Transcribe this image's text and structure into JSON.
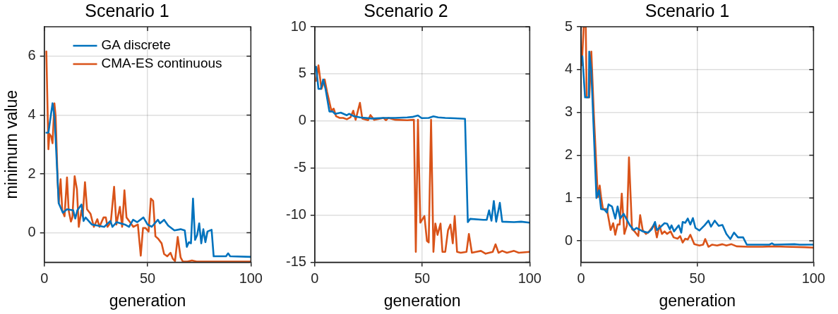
{
  "chart_data": [
    {
      "type": "line",
      "title": "Scenario 1",
      "xlabel": "generation",
      "ylabel": "minimum value",
      "xlim": [
        0,
        100
      ],
      "xticks": [
        0,
        50,
        100
      ],
      "ylim": [
        -1,
        7
      ],
      "yticks": [
        0,
        2,
        4,
        6
      ],
      "grid": true,
      "legend": "top",
      "marker": "none",
      "line_style": "solid",
      "series": [
        {
          "name": "GA discrete",
          "color": "#0072bd",
          "x": [
            1,
            2,
            4,
            5,
            7,
            9,
            11,
            14,
            15,
            16,
            18,
            19,
            20,
            23,
            26,
            29,
            32,
            33,
            35,
            39,
            41,
            43,
            45,
            48,
            50,
            52,
            55,
            56,
            58,
            60,
            63,
            66,
            68,
            69,
            70,
            71,
            72,
            73,
            74,
            75,
            76,
            77,
            78,
            79,
            81,
            82,
            88,
            89,
            90,
            100
          ],
          "values": [
            3.4,
            3.4,
            4.4,
            3.9,
            1.0,
            0.68,
            0.8,
            0.76,
            0.48,
            0.76,
            0.96,
            0.4,
            0.52,
            0.28,
            0.24,
            0.2,
            0.4,
            0.2,
            0.36,
            0.28,
            0.2,
            0.44,
            0.36,
            0.52,
            0.28,
            0.2,
            0.44,
            0.32,
            0.44,
            0.24,
            0.08,
            0.12,
            0.08,
            -0.48,
            -0.32,
            -0.36,
            1.16,
            -0.24,
            -0.08,
            0.32,
            -0.36,
            0.12,
            -0.32,
            0.04,
            0.1,
            -0.8,
            -0.8,
            -0.7,
            -0.8,
            -0.82
          ]
        },
        {
          "name": "CMA-ES continuous",
          "color": "#d95319",
          "x": [
            1,
            2,
            2.5,
            3.3,
            4,
            4.9,
            5.5,
            6.5,
            7,
            7.9,
            8.7,
            9.8,
            11,
            11.8,
            12.9,
            13.6,
            14.7,
            15.8,
            16.7,
            18,
            18.6,
            19.7,
            20.7,
            22.4,
            24,
            25.7,
            26.7,
            28.7,
            29.8,
            30.6,
            32.2,
            33.8,
            34.9,
            36.6,
            37.7,
            38.8,
            39.8,
            41.5,
            43.1,
            45.3,
            46.7,
            47.8,
            49,
            50.5,
            51.6,
            52.7,
            53.8,
            55.1,
            56.8,
            58,
            59.5,
            61.1,
            62.2,
            63.3,
            64.6,
            66,
            67.1,
            69.3,
            71.5,
            73.7,
            78,
            100
          ],
          "values": [
            6.16,
            2.84,
            3.36,
            3.28,
            3.04,
            4.4,
            3.96,
            1.72,
            1.0,
            1.82,
            0.76,
            0.56,
            1.88,
            0.76,
            0.38,
            0.52,
            1.92,
            1.48,
            0.2,
            0.76,
            0.56,
            1.72,
            0.8,
            0.64,
            0.2,
            0.46,
            0.2,
            0.52,
            0.52,
            0.2,
            0.36,
            1.56,
            0.28,
            0.88,
            0.2,
            1.44,
            0.52,
            0.36,
            0.2,
            0.28,
            -0.78,
            0.16,
            0.16,
            0.04,
            1.16,
            1.08,
            -0.12,
            -0.2,
            -0.36,
            -0.72,
            -0.8,
            -0.68,
            -0.88,
            -0.96,
            -0.14,
            -0.84,
            -0.98,
            -0.98,
            -0.94,
            -0.98,
            -0.98,
            -0.98
          ]
        }
      ]
    },
    {
      "type": "line",
      "title": "Scenario 2",
      "xlabel": "generation",
      "xlim": [
        0,
        100
      ],
      "xticks": [
        0,
        50,
        100
      ],
      "ylim": [
        -15,
        10
      ],
      "yticks": [
        -15,
        -10,
        -5,
        0,
        5,
        10
      ],
      "grid": true,
      "marker": "none",
      "line_style": "solid",
      "series": [
        {
          "color": "#0072bd",
          "x": [
            0.6,
            1.7,
            2.8,
            3.9,
            5,
            6.8,
            8.3,
            9.4,
            12.1,
            14.9,
            16,
            18.2,
            21,
            26.5,
            32,
            37.5,
            43,
            45.3,
            48,
            49.7,
            53,
            55.2,
            57.4,
            60.7,
            65.1,
            69.9,
            71.2,
            72.3,
            78.4,
            80,
            81.1,
            82.2,
            83.3,
            84.4,
            86.1,
            87.2,
            92.7,
            96,
            99.9
          ],
          "values": [
            5.75,
            3.4,
            3.4,
            4.4,
            3.4,
            1.0,
            1.0,
            0.75,
            0.88,
            0.6,
            0.75,
            0.5,
            0.38,
            0.25,
            0.32,
            0.32,
            0.38,
            0.42,
            0.58,
            0.3,
            0.32,
            0.48,
            0.38,
            0.32,
            0.28,
            0.22,
            -10.75,
            -10.4,
            -10.5,
            -10.5,
            -9.5,
            -10.6,
            -8.5,
            -10.7,
            -8.7,
            -10.7,
            -10.75,
            -10.7,
            -10.8
          ]
        },
        {
          "color": "#d95319",
          "x": [
            0.6,
            1.7,
            3.1,
            4.6,
            5.7,
            7.7,
            8.8,
            9.9,
            11.6,
            13.2,
            14.9,
            16.6,
            17.9,
            19,
            21,
            22.1,
            24.8,
            25.9,
            27.6,
            32,
            33.1,
            34.2,
            37.5,
            43,
            46.1,
            47,
            48,
            49.1,
            51,
            52.2,
            53,
            54.1,
            55.2,
            56.1,
            57.1,
            58.5,
            59.4,
            60.7,
            62,
            63.1,
            64.2,
            65.1,
            66.2,
            67.9,
            70.6,
            71.7,
            73.1,
            75,
            77.3,
            79.5,
            82.8,
            84.1,
            85.5,
            87.2,
            89.4,
            92.7,
            94.9,
            99.9
          ],
          "values": [
            4.25,
            5.9,
            3.4,
            4.4,
            3.1,
            1.1,
            1.3,
            0.5,
            0.32,
            0.32,
            0.18,
            0.38,
            1.08,
            0.12,
            1.92,
            0.25,
            0.08,
            0.62,
            0.12,
            0.32,
            0.08,
            0.32,
            0.12,
            0.08,
            0.12,
            -13.9,
            0.12,
            -10.8,
            -10.1,
            -12.75,
            -12.9,
            0.12,
            -13.9,
            -10.9,
            -12.1,
            -10.9,
            -13.9,
            -13.9,
            -11.6,
            -11,
            -13,
            -10.1,
            -13.9,
            -14,
            -13.9,
            -12,
            -14,
            -13.9,
            -13.8,
            -14.1,
            -13.9,
            -13.1,
            -14,
            -13.8,
            -14,
            -13.8,
            -14,
            -13.9
          ]
        }
      ]
    },
    {
      "type": "line",
      "title": "Scenario 1",
      "xlabel": "generation",
      "xlim": [
        0,
        100
      ],
      "xticks": [
        0,
        50,
        100
      ],
      "ylim": [
        -0.5,
        5
      ],
      "yticks": [
        0,
        1,
        2,
        3,
        4,
        5
      ],
      "grid": true,
      "marker": "none",
      "line_style": "solid",
      "series": [
        {
          "color": "#0072bd",
          "x": [
            0.55,
            1.7,
            3.3,
            3.5,
            4.4,
            6.6,
            7.7,
            8.6,
            10,
            11.1,
            11.8,
            13.3,
            14.7,
            15.7,
            16.8,
            18.3,
            21,
            22.7,
            23.8,
            26.5,
            28.8,
            30.4,
            31.8,
            32.6,
            34.3,
            35.9,
            37,
            38.2,
            38.9,
            40,
            42,
            43.1,
            43.7,
            44.8,
            45.9,
            47,
            48.1,
            49.2,
            50.9,
            53.1,
            54.8,
            55.9,
            57.5,
            59.2,
            60.8,
            62.5,
            64.2,
            65.8,
            67.5,
            69.7,
            71.3,
            76.3,
            81,
            82.1,
            83,
            91.8,
            94,
            100
          ],
          "values": [
            4.31,
            3.35,
            3.35,
            4.42,
            3.96,
            1.0,
            1.18,
            0.74,
            0.73,
            0.66,
            0.85,
            0.8,
            0.52,
            0.8,
            0.52,
            0.63,
            0.36,
            0.25,
            0.3,
            0.22,
            0.19,
            0.27,
            0.44,
            0.25,
            0.33,
            0.41,
            0.4,
            0.27,
            0.36,
            0.22,
            0.36,
            0.19,
            0.44,
            0.42,
            0.52,
            0.38,
            0.53,
            0.3,
            0.24,
            0.36,
            0.47,
            0.33,
            0.47,
            0.35,
            0.37,
            0.16,
            0.04,
            0.19,
            0.08,
            0.08,
            -0.09,
            -0.09,
            -0.09,
            -0.06,
            -0.09,
            -0.08,
            -0.09,
            -0.09
          ]
        },
        {
          "color": "#d95319",
          "x": [
            0.3,
            1.1,
            2,
            2.4,
            3.5,
            4.4,
            5.5,
            7.2,
            8,
            8.6,
            9.4,
            11.1,
            12.7,
            13.8,
            14.7,
            15.7,
            16.6,
            17.5,
            18.6,
            19.7,
            20.6,
            21.9,
            23,
            24.6,
            25.4,
            26.5,
            27.9,
            29.3,
            31.5,
            32.6,
            33.7,
            34.8,
            35.9,
            37,
            38.5,
            39.8,
            41.5,
            42.6,
            43.7,
            44.8,
            45.9,
            47,
            48.7,
            50.9,
            52.5,
            53.4,
            54.8,
            56.4,
            58.5,
            60.8,
            62.5,
            64.7,
            66.9,
            71.9,
            78,
            83,
            88,
            96.2,
            100
          ],
          "values": [
            4.1,
            5.0,
            5.0,
            3.35,
            3.35,
            4.42,
            2.94,
            1.02,
            1.29,
            1.02,
            0.74,
            0.74,
            0.25,
            0.41,
            0.14,
            0.38,
            0.38,
            1.1,
            0.16,
            0.36,
            1.95,
            0.27,
            0.22,
            0.11,
            0.6,
            0.25,
            0.16,
            0.22,
            0.38,
            0.08,
            0.36,
            0.16,
            0.22,
            0.16,
            0.22,
            0.08,
            0.05,
            0.11,
            -0.04,
            0.05,
            0.03,
            0.14,
            -0.08,
            -0.11,
            -0.09,
            0.04,
            -0.14,
            -0.09,
            -0.11,
            -0.08,
            -0.11,
            -0.08,
            -0.13,
            -0.14,
            -0.14,
            -0.13,
            -0.14,
            -0.15,
            -0.16
          ]
        }
      ]
    }
  ]
}
